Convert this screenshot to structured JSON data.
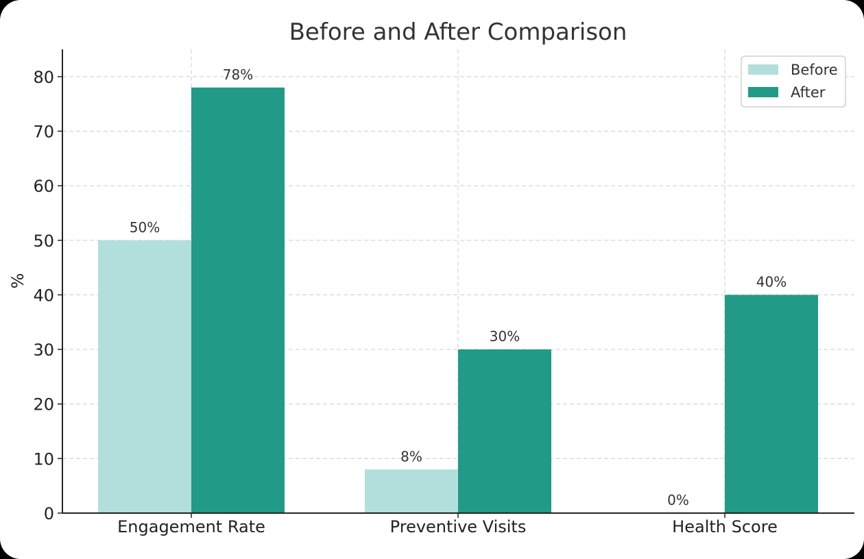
{
  "chart_data": {
    "type": "bar",
    "title": "Before and After Comparison",
    "xlabel": "",
    "ylabel": "%",
    "ylim": [
      0,
      85
    ],
    "yticks": [
      0,
      10,
      20,
      30,
      40,
      50,
      60,
      70,
      80
    ],
    "grid": true,
    "legend_position": "top-right",
    "categories": [
      "Engagement Rate",
      "Preventive Visits",
      "Health Score"
    ],
    "series": [
      {
        "name": "Before",
        "color": "#b2dfdb",
        "values": [
          50,
          8,
          0
        ],
        "labels": [
          "50%",
          "8%",
          "0%"
        ]
      },
      {
        "name": "After",
        "color": "#219a87",
        "values": [
          78,
          30,
          40
        ],
        "labels": [
          "78%",
          "30%",
          "40%"
        ]
      }
    ]
  }
}
